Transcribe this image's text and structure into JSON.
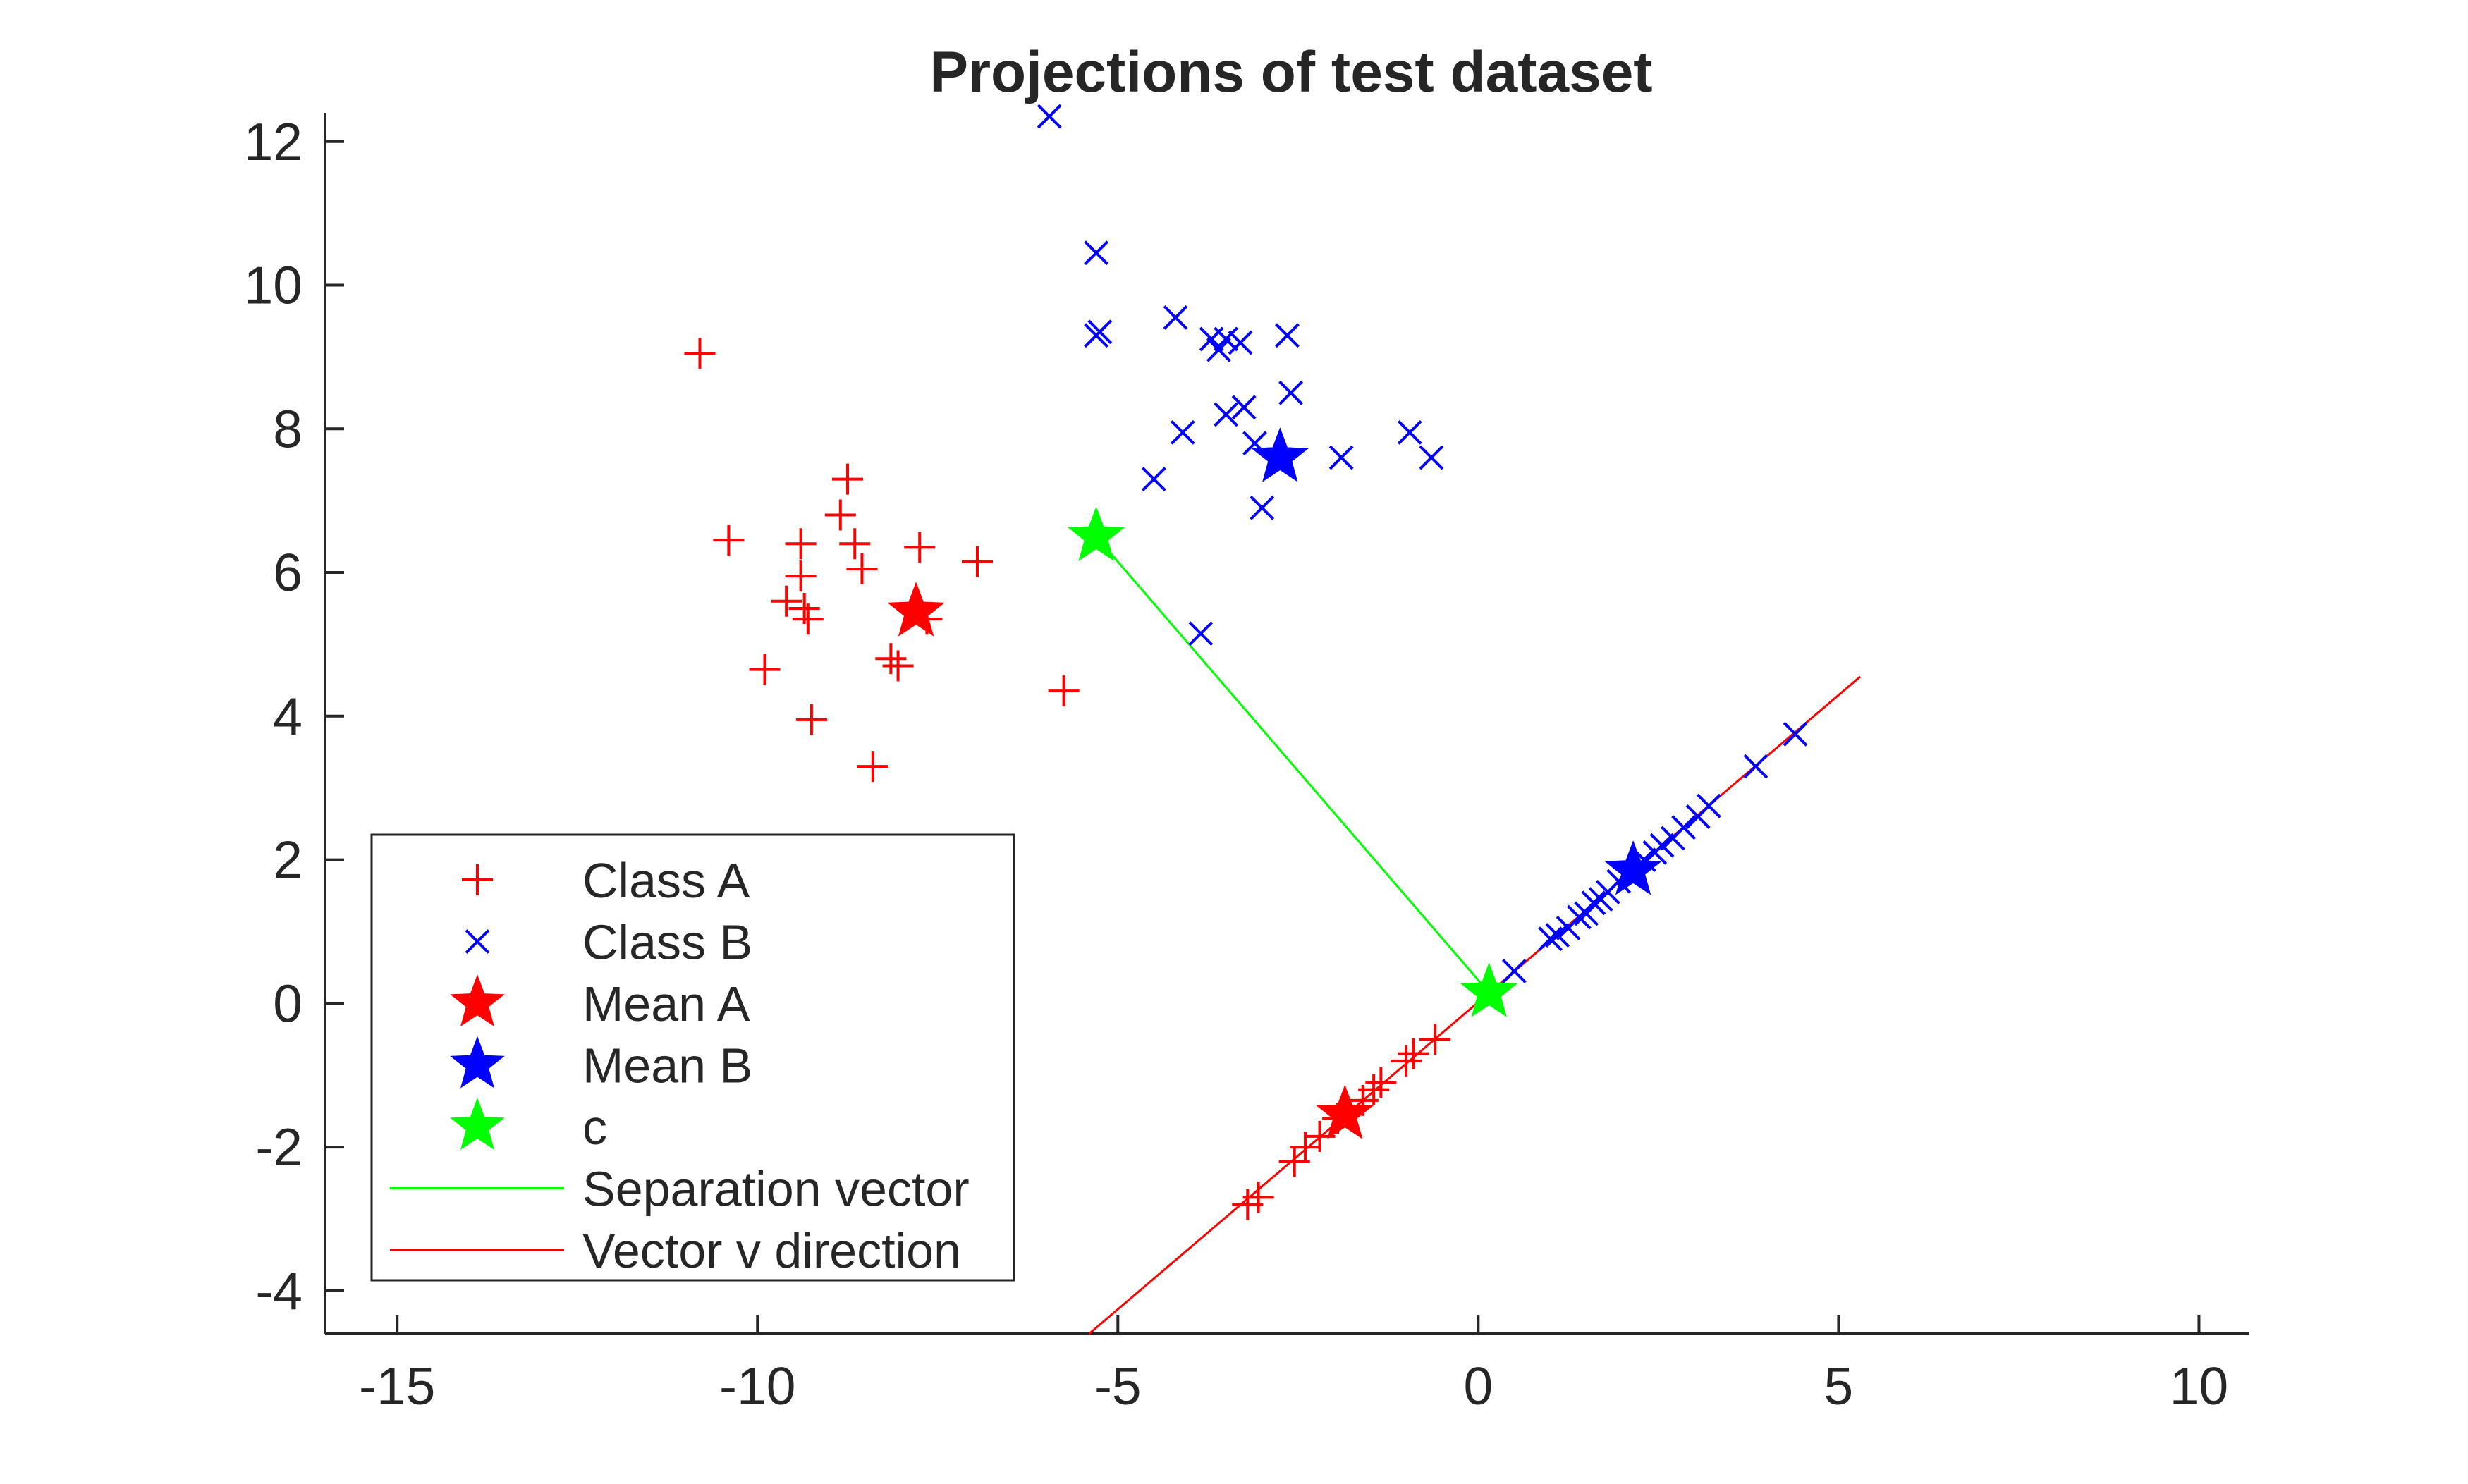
{
  "chart_data": {
    "type": "scatter",
    "title": "Projections of test dataset",
    "xlabel": "",
    "ylabel": "",
    "xlim": [
      -16,
      10.7
    ],
    "ylim": [
      -4.6,
      12.4
    ],
    "xticks": [
      -15,
      -10,
      -5,
      0,
      5,
      10
    ],
    "yticks": [
      -4,
      -2,
      0,
      2,
      4,
      6,
      8,
      10,
      12
    ],
    "grid": false,
    "legend_position": "bottom-left",
    "colors": {
      "class_a": "#ff0000",
      "class_b": "#0000ff",
      "c": "#00ff00",
      "axis": "#262626"
    },
    "series": [
      {
        "name": "Class A",
        "marker": "plus",
        "color": "#ff0000",
        "points": [
          [
            -10.8,
            9.05
          ],
          [
            -10.4,
            6.45
          ],
          [
            -9.9,
            4.65
          ],
          [
            -9.6,
            5.6
          ],
          [
            -9.4,
            6.4
          ],
          [
            -9.4,
            5.95
          ],
          [
            -9.35,
            5.5
          ],
          [
            -9.3,
            5.35
          ],
          [
            -9.25,
            3.95
          ],
          [
            -8.85,
            6.8
          ],
          [
            -8.75,
            7.3
          ],
          [
            -8.65,
            6.4
          ],
          [
            -8.55,
            6.05
          ],
          [
            -8.4,
            3.3
          ],
          [
            -8.15,
            4.8
          ],
          [
            -8.05,
            4.7
          ],
          [
            -7.75,
            6.35
          ],
          [
            -7.65,
            5.35
          ],
          [
            -6.95,
            6.15
          ],
          [
            -5.75,
            4.35
          ],
          [
            -3.2,
            -2.8
          ],
          [
            -3.05,
            -2.7
          ],
          [
            -2.55,
            -2.2
          ],
          [
            -2.4,
            -2.0
          ],
          [
            -2.2,
            -1.85
          ],
          [
            -1.95,
            -1.6
          ],
          [
            -1.6,
            -1.35
          ],
          [
            -1.45,
            -1.2
          ],
          [
            -1.35,
            -1.1
          ],
          [
            -1.0,
            -0.8
          ],
          [
            -0.9,
            -0.7
          ],
          [
            -0.6,
            -0.5
          ]
        ]
      },
      {
        "name": "Class B",
        "marker": "x",
        "color": "#0000ff",
        "points": [
          [
            -5.95,
            12.35
          ],
          [
            -5.3,
            10.45
          ],
          [
            -5.3,
            9.3
          ],
          [
            -5.25,
            9.35
          ],
          [
            -4.2,
            9.55
          ],
          [
            -3.7,
            9.25
          ],
          [
            -3.6,
            9.1
          ],
          [
            -3.5,
            9.25
          ],
          [
            -3.3,
            9.2
          ],
          [
            -2.65,
            9.3
          ],
          [
            -4.1,
            7.95
          ],
          [
            -3.5,
            8.2
          ],
          [
            -3.25,
            8.3
          ],
          [
            -2.6,
            8.5
          ],
          [
            -3.1,
            7.8
          ],
          [
            -4.5,
            7.3
          ],
          [
            -3.0,
            6.9
          ],
          [
            -1.9,
            7.6
          ],
          [
            -0.95,
            7.95
          ],
          [
            -0.65,
            7.6
          ],
          [
            -3.85,
            5.15
          ],
          [
            0.5,
            0.45
          ],
          [
            1.0,
            0.9
          ],
          [
            1.1,
            0.95
          ],
          [
            1.25,
            1.05
          ],
          [
            1.4,
            1.2
          ],
          [
            1.5,
            1.25
          ],
          [
            1.6,
            1.4
          ],
          [
            1.7,
            1.45
          ],
          [
            1.8,
            1.55
          ],
          [
            1.95,
            1.7
          ],
          [
            2.1,
            1.8
          ],
          [
            2.3,
            2.0
          ],
          [
            2.45,
            2.1
          ],
          [
            2.55,
            2.2
          ],
          [
            2.7,
            2.3
          ],
          [
            2.85,
            2.45
          ],
          [
            3.05,
            2.6
          ],
          [
            3.2,
            2.75
          ],
          [
            3.85,
            3.3
          ],
          [
            4.4,
            3.75
          ]
        ]
      },
      {
        "name": "Mean A",
        "marker": "star",
        "color": "#ff0000",
        "points": [
          [
            -7.8,
            5.45
          ],
          [
            -1.85,
            -1.55
          ]
        ]
      },
      {
        "name": "Mean B",
        "marker": "star",
        "color": "#0000ff",
        "points": [
          [
            -2.75,
            7.6
          ],
          [
            2.15,
            1.85
          ]
        ]
      },
      {
        "name": "c",
        "marker": "star",
        "color": "#00ff00",
        "points": [
          [
            -5.3,
            6.5
          ],
          [
            0.15,
            0.15
          ]
        ]
      },
      {
        "name": "Separation vector",
        "type": "line",
        "color": "#00ff00",
        "points": [
          [
            -5.3,
            6.5
          ],
          [
            0.15,
            0.15
          ]
        ]
      },
      {
        "name": "Vector v direction",
        "type": "line",
        "color": "#ff0000",
        "points": [
          [
            -5.4,
            -4.6
          ],
          [
            5.3,
            4.55
          ]
        ]
      }
    ]
  }
}
